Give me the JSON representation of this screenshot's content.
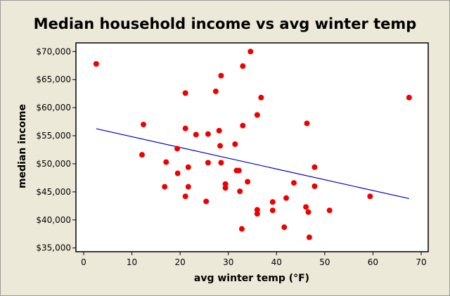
{
  "chart_data": {
    "type": "scatter",
    "title": "Median household income vs avg winter temp",
    "xlabel": "avg winter temp (°F)",
    "ylabel": "median income",
    "xlim": [
      -1,
      71
    ],
    "ylim": [
      34600,
      70600
    ],
    "xticks": [
      0,
      10,
      20,
      30,
      40,
      50,
      60,
      70
    ],
    "yticks": [
      35000,
      40000,
      45000,
      50000,
      55000,
      60000,
      65000,
      70000
    ],
    "ytick_labels": [
      "$35,000",
      "$40,000",
      "$45,000",
      "$50,000",
      "$55,000",
      "$60,000",
      "$65,000",
      "$70,000"
    ],
    "grid": false,
    "colors": {
      "points": "#ee0000",
      "fit_line": "#0000cc",
      "background": "#ece9d8",
      "plot_bg": "#ffffff"
    },
    "points": [
      [
        2.6,
        67800
      ],
      [
        34.6,
        70000
      ],
      [
        33.0,
        67400
      ],
      [
        28.5,
        65700
      ],
      [
        21.1,
        62600
      ],
      [
        27.4,
        62900
      ],
      [
        12.4,
        57000
      ],
      [
        33.0,
        56800
      ],
      [
        21.1,
        56300
      ],
      [
        23.3,
        55200
      ],
      [
        25.8,
        55300
      ],
      [
        28.1,
        55900
      ],
      [
        28.3,
        53200
      ],
      [
        31.4,
        53500
      ],
      [
        19.4,
        52700
      ],
      [
        12.1,
        51600
      ],
      [
        17.1,
        50300
      ],
      [
        25.8,
        50200
      ],
      [
        28.5,
        50200
      ],
      [
        21.7,
        49400
      ],
      [
        31.7,
        48800
      ],
      [
        32.2,
        48800
      ],
      [
        19.5,
        48300
      ],
      [
        34.0,
        46800
      ],
      [
        29.4,
        46400
      ],
      [
        29.4,
        45700
      ],
      [
        16.8,
        45900
      ],
      [
        21.7,
        45900
      ],
      [
        32.4,
        45100
      ],
      [
        21.1,
        44200
      ],
      [
        25.4,
        43300
      ],
      [
        32.8,
        38400
      ],
      [
        36.8,
        61800
      ],
      [
        36.0,
        58700
      ],
      [
        46.3,
        57200
      ],
      [
        67.5,
        61800
      ],
      [
        47.9,
        49400
      ],
      [
        43.6,
        46600
      ],
      [
        47.9,
        46000
      ],
      [
        59.4,
        44200
      ],
      [
        42.0,
        43900
      ],
      [
        39.2,
        43200
      ],
      [
        36.0,
        41800
      ],
      [
        36.0,
        41100
      ],
      [
        39.2,
        41700
      ],
      [
        46.1,
        42300
      ],
      [
        46.6,
        41400
      ],
      [
        51.0,
        41700
      ],
      [
        41.6,
        38700
      ],
      [
        46.8,
        36900
      ]
    ],
    "fit_line": {
      "x": [
        2.6,
        67.5
      ],
      "y": [
        56250,
        43800
      ]
    }
  }
}
